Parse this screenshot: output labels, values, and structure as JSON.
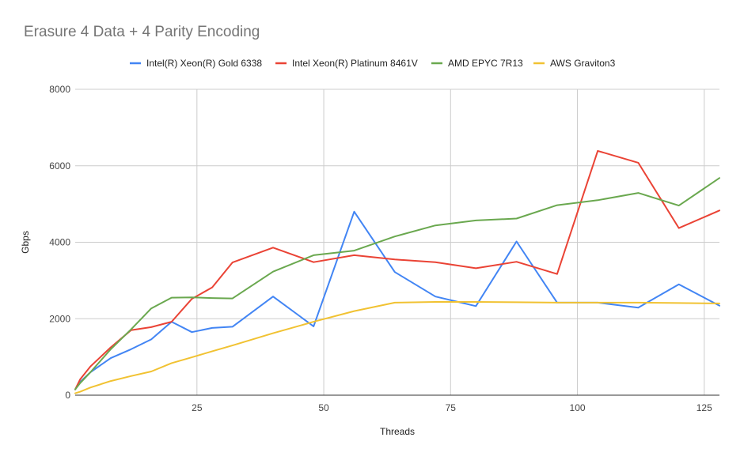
{
  "chart_data": {
    "type": "line",
    "title": "Erasure 4 Data + 4 Parity Encoding",
    "xlabel": "Threads",
    "ylabel": "Gbps",
    "xlim": [
      1,
      128
    ],
    "ylim": [
      0,
      8000
    ],
    "x_ticks": [
      25,
      50,
      75,
      100,
      125
    ],
    "y_ticks": [
      0,
      2000,
      4000,
      6000,
      8000
    ],
    "grid": true,
    "legend_position": "top",
    "series": [
      {
        "name": "Intel(R) Xeon(R) Gold 6338",
        "color": "#4285F4",
        "x": [
          1,
          2,
          4,
          8,
          12,
          16,
          20,
          24,
          28,
          32,
          40,
          48,
          56,
          64,
          72,
          80,
          88,
          96,
          104,
          112,
          120,
          128
        ],
        "y": [
          150,
          350,
          600,
          970,
          1200,
          1460,
          1920,
          1650,
          1760,
          1790,
          2580,
          1800,
          4800,
          3220,
          2580,
          2330,
          4020,
          2420,
          2420,
          2290,
          2900,
          2340
        ]
      },
      {
        "name": "Intel Xeon(R) Platinum 8461V",
        "color": "#EA4335",
        "x": [
          1,
          2,
          4,
          8,
          12,
          16,
          20,
          24,
          28,
          32,
          40,
          48,
          56,
          64,
          72,
          80,
          88,
          96,
          104,
          112,
          120,
          128
        ],
        "y": [
          150,
          420,
          750,
          1250,
          1700,
          1780,
          1920,
          2520,
          2820,
          3470,
          3860,
          3480,
          3660,
          3550,
          3480,
          3320,
          3490,
          3170,
          6390,
          6080,
          4370,
          4830
        ]
      },
      {
        "name": "AMD EPYC 7R13",
        "color": "#6AA84F",
        "x": [
          1,
          2,
          4,
          8,
          12,
          16,
          20,
          24,
          28,
          32,
          40,
          48,
          56,
          64,
          72,
          80,
          88,
          96,
          104,
          112,
          120,
          128
        ],
        "y": [
          150,
          320,
          600,
          1200,
          1720,
          2270,
          2550,
          2560,
          2540,
          2530,
          3230,
          3660,
          3780,
          4150,
          4440,
          4570,
          4620,
          4970,
          5100,
          5290,
          4960,
          5680
        ]
      },
      {
        "name": "AWS Graviton3",
        "color": "#F1C232",
        "x": [
          1,
          2,
          4,
          8,
          12,
          16,
          20,
          24,
          28,
          32,
          40,
          48,
          56,
          64,
          72,
          80,
          88,
          96,
          104,
          112,
          120,
          128
        ],
        "y": [
          50,
          90,
          200,
          370,
          500,
          620,
          840,
          990,
          1150,
          1300,
          1620,
          1920,
          2200,
          2420,
          2440,
          2440,
          2430,
          2420,
          2420,
          2420,
          2410,
          2400
        ]
      }
    ]
  }
}
